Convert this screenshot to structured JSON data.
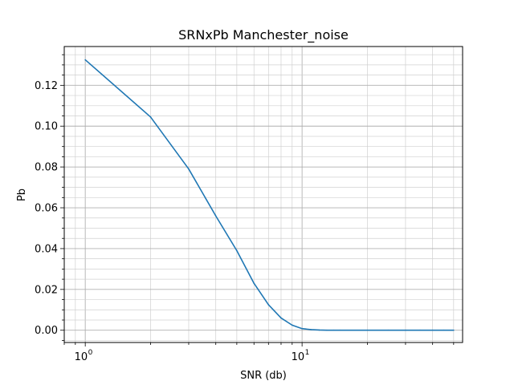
{
  "chart_data": {
    "type": "line",
    "title": "SRNxPb Manchester_noise",
    "xlabel": "SNR (db)",
    "ylabel": "Pb",
    "xscale": "log",
    "xlim": [
      0.8,
      55
    ],
    "ylim": [
      -0.006,
      0.139
    ],
    "grid": "major and minor",
    "line_color": "#1f77b4",
    "x_ticks": [
      {
        "base": "10",
        "exp": "0",
        "value": 1
      },
      {
        "base": "10",
        "exp": "1",
        "value": 10
      }
    ],
    "y_ticks": [
      {
        "label": "0.00",
        "value": 0.0
      },
      {
        "label": "0.02",
        "value": 0.02
      },
      {
        "label": "0.04",
        "value": 0.04
      },
      {
        "label": "0.06",
        "value": 0.06
      },
      {
        "label": "0.08",
        "value": 0.08
      },
      {
        "label": "0.10",
        "value": 0.1
      },
      {
        "label": "0.12",
        "value": 0.12
      }
    ],
    "series": [
      {
        "x": [
          1,
          2,
          3,
          4,
          5,
          6,
          7,
          8,
          9,
          10,
          11,
          12,
          13,
          14,
          15,
          20,
          25,
          30,
          35,
          40,
          45,
          50
        ],
        "y": [
          0.1325,
          0.1045,
          0.079,
          0.056,
          0.039,
          0.023,
          0.0125,
          0.006,
          0.0025,
          0.0008,
          0.0003,
          0.0001,
          0.0,
          0.0,
          0.0,
          0.0,
          0.0,
          0.0,
          0.0,
          0.0,
          0.0,
          0.0
        ]
      }
    ]
  }
}
